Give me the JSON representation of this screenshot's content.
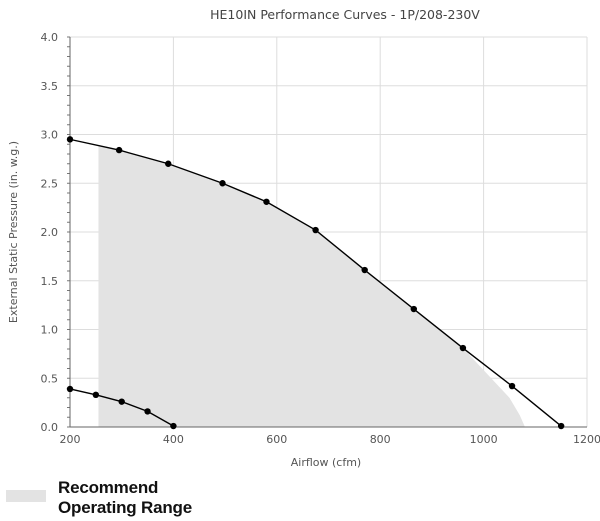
{
  "chart_data": {
    "type": "line",
    "title": "HE10IN Performance Curves - 1P/208-230V",
    "xlabel": "Airflow (cfm)",
    "ylabel": "External Static Pressure (in. w.g.)",
    "xlim": [
      200,
      1200
    ],
    "ylim": [
      0,
      4.0
    ],
    "x_ticks": [
      "200",
      "400",
      "600",
      "800",
      "1000",
      "1200"
    ],
    "y_ticks": [
      "0.0",
      "0.5",
      "1.0",
      "1.5",
      "2.0",
      "2.5",
      "3.0",
      "3.5",
      "4.0"
    ],
    "grid": true,
    "series": [
      {
        "color": "#000000",
        "points": [
          [
            200,
            2.95
          ],
          [
            295,
            2.84
          ],
          [
            390,
            2.7
          ],
          [
            495,
            2.5
          ],
          [
            580,
            2.31
          ],
          [
            675,
            2.02
          ],
          [
            770,
            1.61
          ],
          [
            865,
            1.21
          ],
          [
            960,
            0.81
          ],
          [
            1055,
            0.42
          ],
          [
            1150,
            0.01
          ]
        ]
      },
      {
        "color": "#000000",
        "points": [
          [
            200,
            0.39
          ],
          [
            250,
            0.33
          ],
          [
            300,
            0.26
          ],
          [
            350,
            0.16
          ],
          [
            400,
            0.01
          ]
        ]
      }
    ],
    "operating_range": {
      "color": "#e3e3e3",
      "left_x": 255,
      "upper_y_at_left": 2.88,
      "tail_points": [
        [
          1050,
          0.3
        ],
        [
          1070,
          0.12
        ],
        [
          1080,
          0.0
        ]
      ]
    }
  },
  "legend": {
    "line1": "Recommend",
    "line2": "Operating Range",
    "swatch_color": "#e3e3e3"
  }
}
